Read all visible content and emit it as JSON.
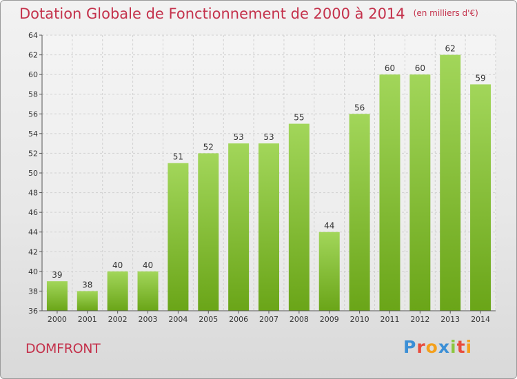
{
  "title": "Dotation Globale de Fonctionnement de 2000 à 2014",
  "title_unit": "(en milliers d'€)",
  "location": "DOMFRONT",
  "logo": {
    "text": "Proxiti",
    "letters": [
      {
        "ch": "P",
        "color": "#3b8fd6"
      },
      {
        "ch": "r",
        "color": "#e84c3d"
      },
      {
        "ch": "o",
        "color": "#f4a01c"
      },
      {
        "ch": "x",
        "color": "#3b8fd6"
      },
      {
        "ch": "i",
        "color": "#8cc63f"
      },
      {
        "ch": "t",
        "color": "#e84c3d"
      },
      {
        "ch": "i",
        "color": "#f4a01c"
      }
    ]
  },
  "colors": {
    "bar_light": "#a2d65a",
    "bar_dark": "#6aa518",
    "title": "#c4314b",
    "grid": "#d0d0d0",
    "axis": "#555555"
  },
  "chart_data": {
    "type": "bar",
    "title": "Dotation Globale de Fonctionnement de 2000 à 2014",
    "xlabel": "",
    "ylabel": "",
    "categories": [
      "2000",
      "2001",
      "2002",
      "2003",
      "2004",
      "2005",
      "2006",
      "2007",
      "2008",
      "2009",
      "2010",
      "2011",
      "2012",
      "2013",
      "2014"
    ],
    "values": [
      39,
      38,
      40,
      40,
      51,
      52,
      53,
      53,
      55,
      44,
      56,
      60,
      60,
      62,
      59
    ],
    "ylim": [
      36,
      64
    ],
    "yticks": [
      36,
      38,
      40,
      42,
      44,
      46,
      48,
      50,
      52,
      54,
      56,
      58,
      60,
      62,
      64
    ],
    "grid": true,
    "data_labels": true
  }
}
